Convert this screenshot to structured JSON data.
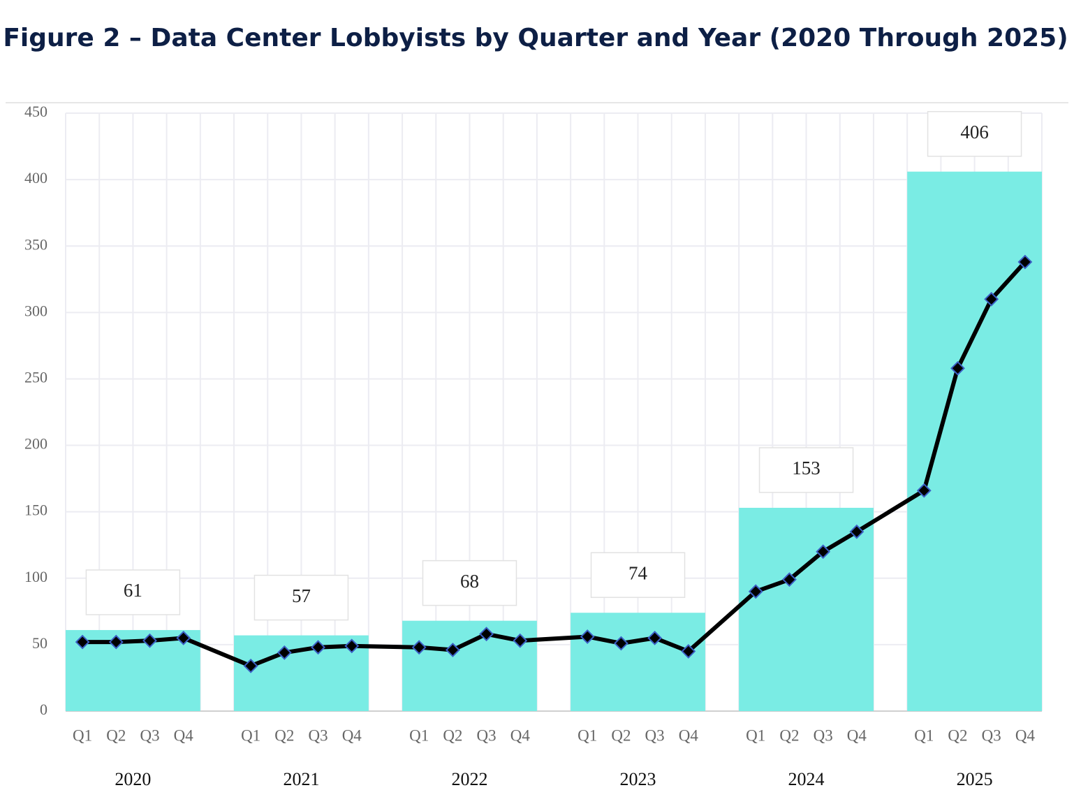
{
  "chart_data": {
    "type": "combo",
    "title": "Figure 2 – Data Center Lobbyists by Quarter and Year (2020 Through 2025)",
    "categories": [
      "2020",
      "2021",
      "2022",
      "2023",
      "2024",
      "2025"
    ],
    "quarters": [
      "Q1",
      "Q2",
      "Q3",
      "Q4"
    ],
    "values": [
      61,
      57,
      68,
      74,
      153,
      406
    ],
    "color": "#7aece4",
    "line": {
      "color": "#000000",
      "marker_color": "#3a5fc4",
      "values": [
        52,
        52,
        53,
        55,
        34,
        44,
        48,
        49,
        48,
        46,
        58,
        53,
        56,
        51,
        55,
        45,
        90,
        99,
        120,
        135,
        166,
        258,
        310,
        338
      ]
    },
    "ylim": [
      0,
      450
    ],
    "yticks": [
      0,
      50,
      100,
      150,
      200,
      250,
      300,
      350,
      400,
      450
    ],
    "grid": true
  }
}
